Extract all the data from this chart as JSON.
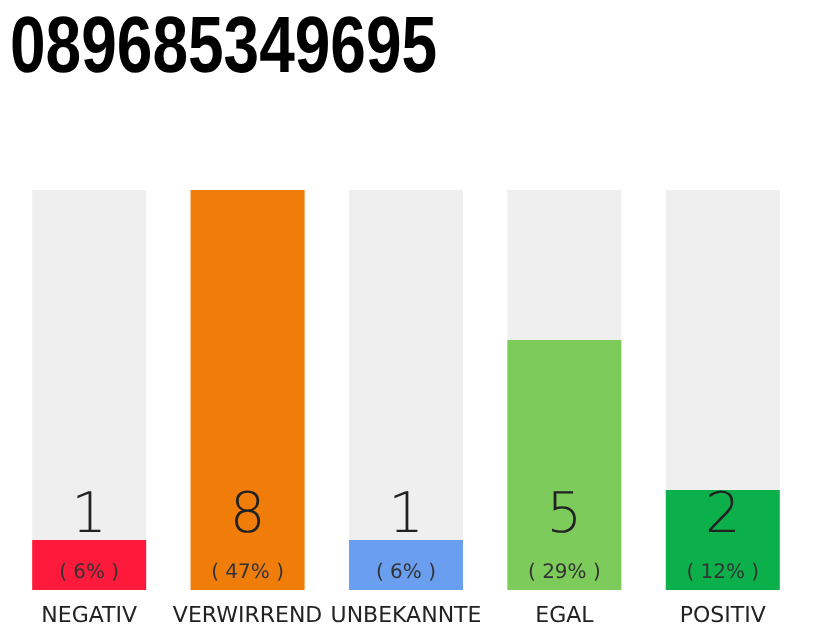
{
  "chart_data": {
    "type": "bar",
    "title": "089685349695",
    "categories": [
      "NEGATIV",
      "VERWIRREND",
      "UNBEKANNTE",
      "EGAL",
      "POSITIV"
    ],
    "values": [
      1,
      8,
      1,
      5,
      2
    ],
    "colors": [
      "#ff1a3c",
      "#f07d0a",
      "#6a9ff0",
      "#7dcb5b",
      "#0cb04a"
    ],
    "data_labels": true,
    "annotations": [
      "( 6% )",
      "( 47% )",
      "( 6% )",
      "( 29% )",
      "( 12% )"
    ]
  }
}
